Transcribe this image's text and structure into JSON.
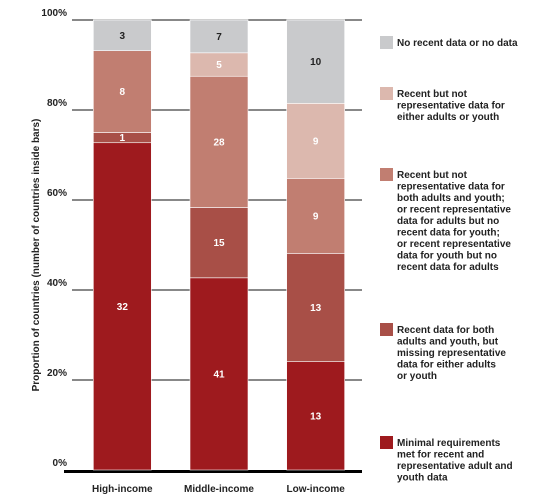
{
  "chart_data": {
    "type": "bar",
    "stacked": true,
    "orientation": "vertical",
    "categories": [
      "High-income",
      "Middle-income",
      "Low-income"
    ],
    "ylabel": "Proportion of countries (number of countries inside bars)",
    "ylim": [
      0,
      100
    ],
    "yticks": [
      "0%",
      "20%",
      "40%",
      "60%",
      "80%",
      "100%"
    ],
    "grid": false,
    "legend_position": "right",
    "series": [
      {
        "name": "Minimal requirements met for recent and representative adult and youth data",
        "color": "#9e1a1e",
        "values": [
          32,
          41,
          13
        ]
      },
      {
        "name": "Recent data for both adults and youth, but missing representative data for either adults or youth",
        "color": "#a84f47",
        "values": [
          1,
          15,
          13
        ]
      },
      {
        "name": "Recent but not representative data for both adults and youth; or recent representative data for adults but no recent data for youth; or recent representative data for youth but no recent data for adults",
        "color": "#c17e71",
        "values": [
          8,
          28,
          9
        ]
      },
      {
        "name": "Recent but not representative data for either adults or youth",
        "color": "#dcb8ae",
        "values": [
          0,
          5,
          9
        ]
      },
      {
        "name": "No recent data or no data",
        "color": "#c9cacc",
        "values": [
          3,
          7,
          10
        ]
      }
    ],
    "legend_lines": [
      [
        "No recent data or no data"
      ],
      [
        "Recent but not",
        "representative data for",
        "either adults or youth"
      ],
      [
        "Recent but not",
        "representative data for",
        "both adults and youth;",
        "or recent representative",
        "data for adults but no",
        "recent data for youth;",
        "or recent representative",
        "data for youth but no",
        "recent data for adults"
      ],
      [
        "Recent data for both",
        "adults and youth, but",
        "missing representative",
        "data for either adults",
        "or youth"
      ],
      [
        "Minimal requirements",
        "met for recent and",
        "representative adult and",
        "youth data"
      ]
    ],
    "legend_colors": [
      "#c9cacc",
      "#dcb8ae",
      "#c17e71",
      "#a84f47",
      "#9e1a1e"
    ]
  }
}
